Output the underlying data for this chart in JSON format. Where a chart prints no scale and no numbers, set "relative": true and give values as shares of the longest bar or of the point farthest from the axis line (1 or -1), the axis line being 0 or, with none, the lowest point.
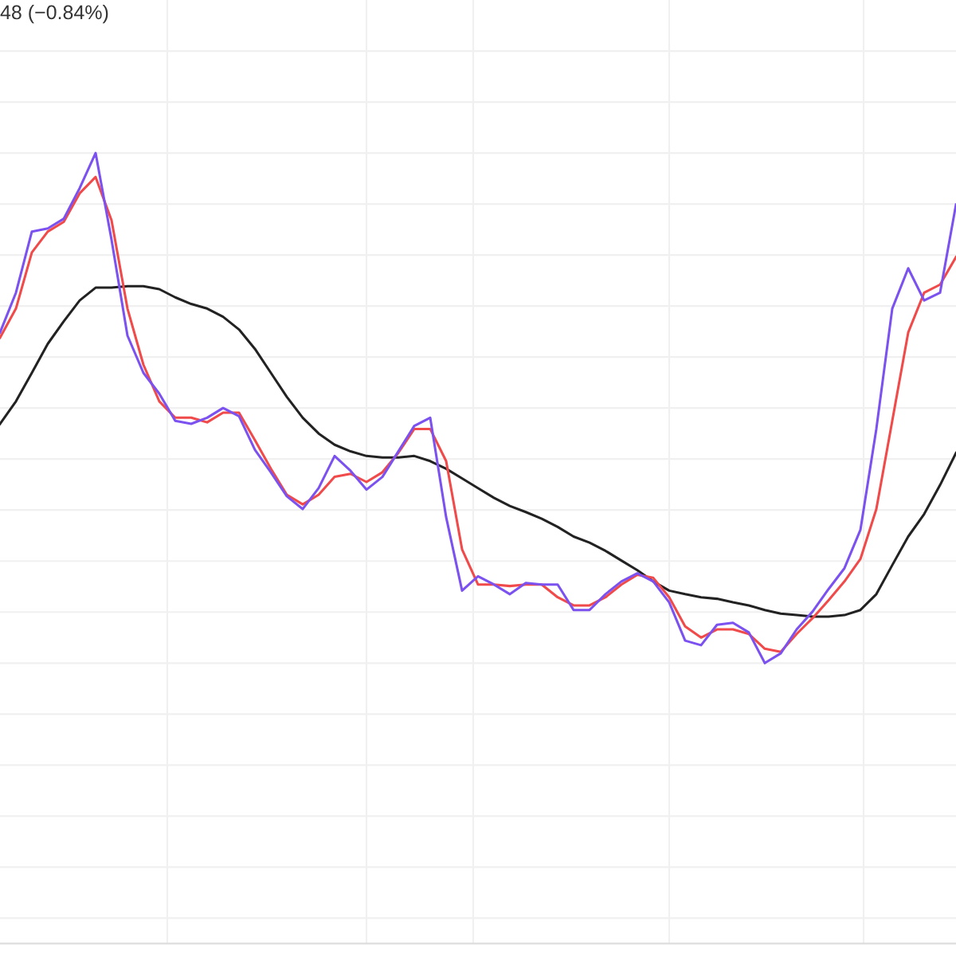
{
  "chart_data": {
    "type": "line",
    "relative": true,
    "grid": true,
    "tick_labels": false,
    "annotations": [
      "48 (−0.84%)"
    ],
    "categories": [
      null,
      null,
      null,
      null,
      null,
      null,
      null,
      null,
      null,
      null,
      null,
      null,
      null,
      null,
      null,
      null,
      null,
      null,
      null,
      null,
      null,
      null,
      null,
      null,
      null,
      null,
      null,
      null,
      null,
      null,
      null,
      null,
      null,
      null,
      null,
      null,
      null,
      null,
      null,
      null,
      null,
      null,
      null,
      null,
      null,
      null,
      null,
      null,
      null,
      null,
      null,
      null,
      null,
      null,
      null,
      null,
      null,
      null,
      null,
      null,
      null
    ],
    "series": [
      {
        "color": "#222222",
        "values": [
          0.469,
          0.513,
          0.569,
          0.626,
          0.67,
          0.711,
          0.736,
          0.736,
          0.739,
          0.739,
          0.733,
          0.717,
          0.704,
          0.695,
          0.679,
          0.654,
          0.616,
          0.569,
          0.522,
          0.481,
          0.45,
          0.428,
          0.415,
          0.406,
          0.403,
          0.403,
          0.406,
          0.396,
          0.381,
          0.362,
          0.343,
          0.324,
          0.308,
          0.296,
          0.283,
          0.267,
          0.248,
          0.236,
          0.22,
          0.201,
          0.182,
          0.16,
          0.142,
          0.135,
          0.129,
          0.126,
          0.119,
          0.113,
          0.104,
          0.097,
          0.094,
          0.091,
          0.091,
          0.094,
          0.104,
          0.135,
          0.192,
          0.248,
          0.292,
          0.349,
          0.412
        ]
      },
      {
        "color": "#f04a4a",
        "values": [
          0.638,
          0.695,
          0.805,
          0.846,
          0.865,
          0.921,
          0.953,
          0.868,
          0.695,
          0.585,
          0.513,
          0.481,
          0.481,
          0.472,
          0.491,
          0.491,
          0.437,
          0.381,
          0.33,
          0.311,
          0.33,
          0.365,
          0.371,
          0.355,
          0.374,
          0.412,
          0.459,
          0.459,
          0.396,
          0.223,
          0.154,
          0.154,
          0.151,
          0.154,
          0.154,
          0.129,
          0.113,
          0.113,
          0.129,
          0.154,
          0.173,
          0.167,
          0.129,
          0.072,
          0.05,
          0.066,
          0.066,
          0.057,
          0.028,
          0.022,
          0.057,
          0.088,
          0.123,
          0.16,
          0.204,
          0.302,
          0.475,
          0.648,
          0.726,
          0.742,
          0.796
        ]
      },
      {
        "color": "#7b52f0",
        "values": [
          0.648,
          0.726,
          0.846,
          0.852,
          0.871,
          0.931,
          1.0,
          0.83,
          0.642,
          0.569,
          0.528,
          0.475,
          0.469,
          0.481,
          0.5,
          0.484,
          0.418,
          0.374,
          0.327,
          0.302,
          0.343,
          0.406,
          0.377,
          0.34,
          0.365,
          0.415,
          0.465,
          0.481,
          0.286,
          0.142,
          0.17,
          0.154,
          0.135,
          0.157,
          0.154,
          0.154,
          0.104,
          0.104,
          0.135,
          0.16,
          0.176,
          0.16,
          0.119,
          0.044,
          0.035,
          0.075,
          0.079,
          0.06,
          0.0,
          0.019,
          0.066,
          0.101,
          0.145,
          0.186,
          0.261,
          0.459,
          0.695,
          0.774,
          0.711,
          0.726,
          0.899
        ]
      }
    ]
  }
}
